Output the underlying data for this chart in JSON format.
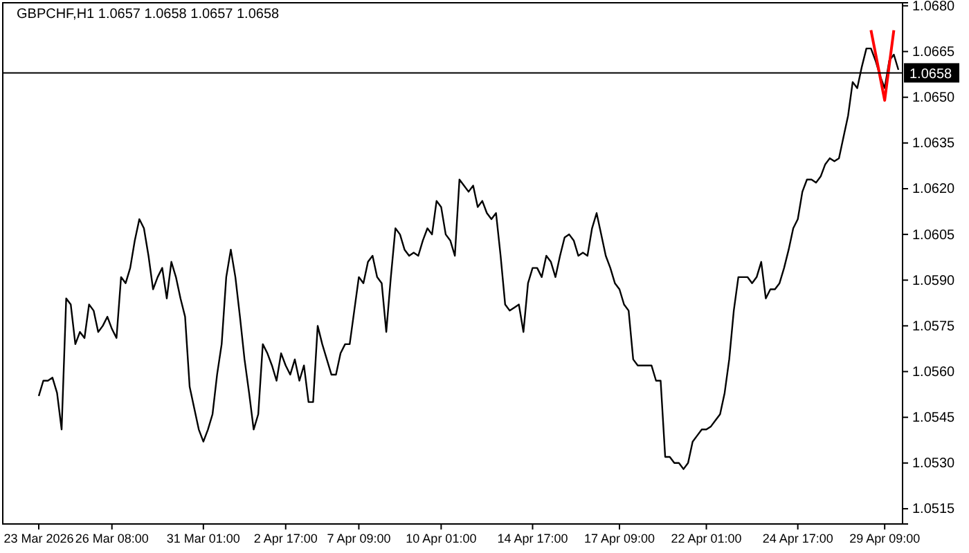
{
  "chart_data": {
    "type": "line",
    "title": "GBPCHF,H1  1.0657 1.0658 1.0657 1.0658",
    "categories": [
      "23 Mar 2026",
      null,
      null,
      null,
      null,
      null,
      null,
      null,
      null,
      null,
      null,
      null,
      null,
      null,
      null,
      null,
      "26 Mar 08:00",
      null,
      null,
      null,
      null,
      null,
      null,
      null,
      null,
      null,
      null,
      null,
      null,
      null,
      null,
      null,
      null,
      null,
      null,
      null,
      "31 Mar 01:00",
      null,
      null,
      null,
      null,
      null,
      null,
      null,
      null,
      null,
      null,
      null,
      null,
      null,
      null,
      null,
      null,
      null,
      "2 Apr 17:00",
      null,
      null,
      null,
      null,
      null,
      null,
      null,
      null,
      null,
      null,
      null,
      null,
      null,
      null,
      null,
      "7 Apr 09:00",
      null,
      null,
      null,
      null,
      null,
      null,
      null,
      null,
      null,
      null,
      null,
      null,
      null,
      null,
      null,
      null,
      null,
      "10 Apr 01:00",
      null,
      null,
      null,
      null,
      null,
      null,
      null,
      null,
      null,
      null,
      null,
      null,
      null,
      null,
      null,
      null,
      null,
      null,
      null,
      "14 Apr 17:00",
      null,
      null,
      null,
      null,
      null,
      null,
      null,
      null,
      null,
      null,
      null,
      null,
      null,
      null,
      null,
      null,
      null,
      null,
      "17 Apr 09:00",
      null,
      null,
      null,
      null,
      null,
      null,
      null,
      null,
      null,
      null,
      null,
      null,
      null,
      null,
      null,
      null,
      null,
      null,
      "22 Apr 01:00",
      null,
      null,
      null,
      null,
      null,
      null,
      null,
      null,
      null,
      null,
      null,
      null,
      null,
      null,
      null,
      null,
      null,
      null,
      null,
      "24 Apr 17:00",
      null,
      null,
      null,
      null,
      null,
      null,
      null,
      null,
      null,
      null,
      null,
      null,
      null,
      null,
      null,
      null,
      null,
      null,
      "29 Apr 09:00",
      null,
      null,
      null
    ],
    "ylim": [
      1.051,
      1.0681
    ],
    "yticks": [
      {
        "value": 1.0515,
        "label": "1.0515"
      },
      {
        "value": 1.053,
        "label": "1.0530"
      },
      {
        "value": 1.0545,
        "label": "1.0545"
      },
      {
        "value": 1.056,
        "label": "1.0560"
      },
      {
        "value": 1.0575,
        "label": "1.0575"
      },
      {
        "value": 1.059,
        "label": "1.0590"
      },
      {
        "value": 1.0605,
        "label": "1.0605"
      },
      {
        "value": 1.062,
        "label": "1.0620"
      },
      {
        "value": 1.0635,
        "label": "1.0635"
      },
      {
        "value": 1.065,
        "label": "1.0650"
      },
      {
        "value": 1.0665,
        "label": "1.0665"
      },
      {
        "value": 1.068,
        "label": "1.0680"
      }
    ],
    "ref_lines": [
      {
        "axis": "y",
        "value": 1.0658,
        "label": "1.0658",
        "color": "#000000"
      }
    ],
    "series": [
      {
        "color": "#000000",
        "values": [
          1.0552,
          1.0557,
          1.0557,
          1.0558,
          1.0553,
          1.0541,
          1.0584,
          1.0582,
          1.0569,
          1.0573,
          1.0571,
          1.0582,
          1.058,
          1.0573,
          1.0575,
          1.0578,
          1.0574,
          1.0571,
          1.0591,
          1.0589,
          1.0594,
          1.0603,
          1.061,
          1.0607,
          1.0598,
          1.0587,
          1.0591,
          1.0594,
          1.0584,
          1.0596,
          1.0591,
          1.0584,
          1.0578,
          1.0555,
          1.0548,
          1.0541,
          1.0537,
          1.0541,
          1.0546,
          1.0559,
          1.0569,
          1.0591,
          1.06,
          1.0591,
          1.0578,
          1.0564,
          1.0553,
          1.0541,
          1.0546,
          1.0569,
          1.0566,
          1.0562,
          1.0557,
          1.0566,
          1.0562,
          1.0559,
          1.0564,
          1.0557,
          1.0562,
          1.055,
          1.055,
          1.0575,
          1.0569,
          1.0564,
          1.0559,
          1.0559,
          1.0566,
          1.0569,
          1.0569,
          1.058,
          1.0591,
          1.0589,
          1.0596,
          1.0598,
          1.0591,
          1.0589,
          1.0573,
          1.0591,
          1.0607,
          1.0605,
          1.06,
          1.0598,
          1.0599,
          1.0598,
          1.0603,
          1.0607,
          1.0605,
          1.0616,
          1.0614,
          1.0605,
          1.0603,
          1.0598,
          1.0623,
          1.0621,
          1.0619,
          1.0621,
          1.0614,
          1.0616,
          1.0612,
          1.061,
          1.0612,
          1.0598,
          1.0582,
          1.058,
          1.0581,
          1.0582,
          1.0573,
          1.0589,
          1.0594,
          1.0594,
          1.0591,
          1.0598,
          1.0596,
          1.0591,
          1.0598,
          1.0604,
          1.0605,
          1.0603,
          1.0598,
          1.0599,
          1.0598,
          1.0607,
          1.0612,
          1.0605,
          1.0598,
          1.0594,
          1.0589,
          1.0587,
          1.0582,
          1.058,
          1.0564,
          1.0562,
          1.0562,
          1.0562,
          1.0562,
          1.0557,
          1.0557,
          1.0532,
          1.0532,
          1.053,
          1.053,
          1.0528,
          1.053,
          1.0537,
          1.0539,
          1.0541,
          1.0541,
          1.0542,
          1.0544,
          1.0546,
          1.0553,
          1.0564,
          1.058,
          1.0591,
          1.0591,
          1.0591,
          1.0589,
          1.0591,
          1.0596,
          1.0584,
          1.0587,
          1.0587,
          1.0589,
          1.0594,
          1.06,
          1.0607,
          1.061,
          1.0619,
          1.0623,
          1.0623,
          1.0622,
          1.0624,
          1.0628,
          1.063,
          1.0629,
          1.063,
          1.0637,
          1.0644,
          1.0655,
          1.0653,
          1.066,
          1.0666,
          1.0666,
          1.0662,
          1.0657,
          1.0653,
          1.0662,
          1.0664,
          1.0659
        ]
      },
      {
        "color": "#ff0000",
        "values": [
          null,
          null,
          null,
          null,
          null,
          null,
          null,
          null,
          null,
          null,
          null,
          null,
          null,
          null,
          null,
          null,
          null,
          null,
          null,
          null,
          null,
          null,
          null,
          null,
          null,
          null,
          null,
          null,
          null,
          null,
          null,
          null,
          null,
          null,
          null,
          null,
          null,
          null,
          null,
          null,
          null,
          null,
          null,
          null,
          null,
          null,
          null,
          null,
          null,
          null,
          null,
          null,
          null,
          null,
          null,
          null,
          null,
          null,
          null,
          null,
          null,
          null,
          null,
          null,
          null,
          null,
          null,
          null,
          null,
          null,
          null,
          null,
          null,
          null,
          null,
          null,
          null,
          null,
          null,
          null,
          null,
          null,
          null,
          null,
          null,
          null,
          null,
          null,
          null,
          null,
          null,
          null,
          null,
          null,
          null,
          null,
          null,
          null,
          null,
          null,
          null,
          null,
          null,
          null,
          null,
          null,
          null,
          null,
          null,
          null,
          null,
          null,
          null,
          null,
          null,
          null,
          null,
          null,
          null,
          null,
          null,
          null,
          null,
          null,
          null,
          null,
          null,
          null,
          null,
          null,
          null,
          null,
          null,
          null,
          null,
          null,
          null,
          null,
          null,
          null,
          null,
          null,
          null,
          null,
          null,
          null,
          null,
          null,
          null,
          null,
          null,
          null,
          null,
          null,
          null,
          null,
          null,
          null,
          null,
          null,
          null,
          null,
          null,
          null,
          null,
          null,
          null,
          null,
          null,
          null,
          null,
          null,
          null,
          null,
          null,
          null,
          null,
          null,
          null,
          null,
          null,
          null,
          1.0672,
          null,
          null,
          1.0649,
          null,
          1.0672,
          null
        ]
      }
    ]
  }
}
